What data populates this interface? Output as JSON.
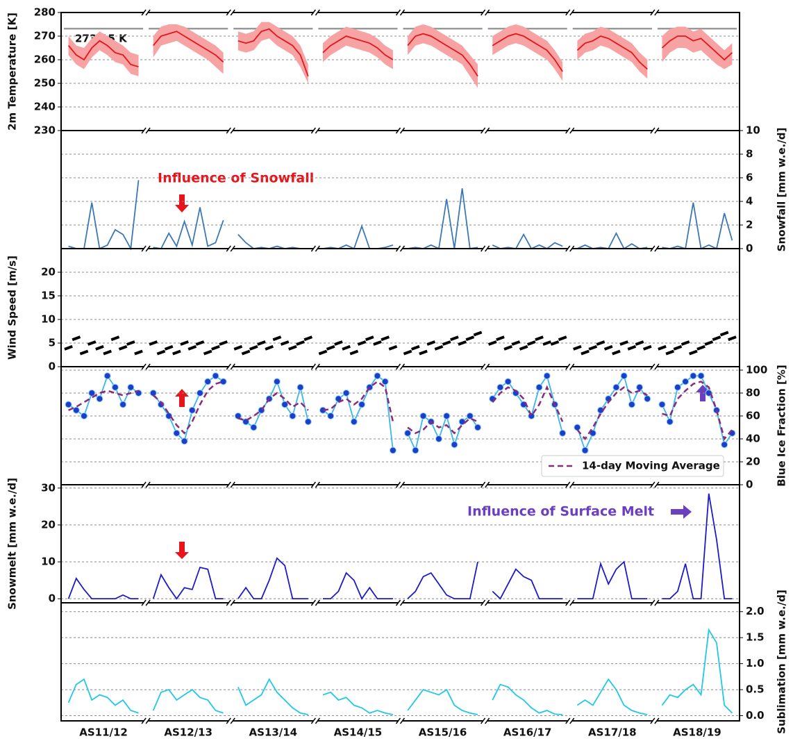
{
  "chart_data": [
    {
      "type": "line",
      "ylabel": "2m Temperature [K]",
      "axis_side": "left",
      "ylim": [
        230,
        280
      ],
      "yticks": [
        230,
        240,
        250,
        260,
        270,
        280
      ],
      "grid": true,
      "reference_line": 273.15,
      "reference_label": "273.15 K",
      "band": {
        "color": "#f7a3a3",
        "lower": [
          [
            262,
            258,
            256,
            261,
            264,
            262,
            259,
            258,
            254,
            253
          ],
          [
            261,
            266,
            267,
            268,
            266,
            264,
            262,
            260,
            257,
            254
          ],
          [
            264,
            263,
            264,
            268,
            269,
            266,
            264,
            262,
            257,
            250
          ],
          [
            259,
            262,
            264,
            266,
            265,
            264,
            263,
            261,
            258,
            256
          ],
          [
            262,
            266,
            267,
            266,
            264,
            262,
            260,
            258,
            253,
            248
          ],
          [
            262,
            264,
            266,
            267,
            266,
            264,
            262,
            260,
            256,
            251
          ],
          [
            260,
            263,
            264,
            266,
            265,
            263,
            261,
            259,
            255,
            252
          ],
          [
            259,
            263,
            265,
            265,
            263,
            264,
            261,
            258,
            256,
            258
          ]
        ],
        "upper": [
          [
            270,
            266,
            265,
            269,
            272,
            270,
            268,
            266,
            263,
            262
          ],
          [
            270,
            274,
            275,
            275,
            274,
            272,
            270,
            268,
            266,
            263
          ],
          [
            272,
            271,
            272,
            276,
            276,
            274,
            272,
            270,
            266,
            258
          ],
          [
            267,
            270,
            272,
            274,
            273,
            272,
            271,
            269,
            266,
            264
          ],
          [
            270,
            274,
            275,
            274,
            272,
            270,
            268,
            266,
            262,
            258
          ],
          [
            270,
            272,
            274,
            275,
            274,
            272,
            270,
            268,
            264,
            259
          ],
          [
            268,
            271,
            272,
            274,
            273,
            271,
            269,
            267,
            263,
            260
          ],
          [
            270,
            273,
            274,
            274,
            272,
            273,
            270,
            267,
            264,
            267
          ]
        ]
      },
      "series": [
        {
          "color": "#e3161b",
          "line": true,
          "values": [
            [
              266,
              262,
              260,
              265,
              268,
              266,
              263,
              262,
              258,
              257
            ],
            [
              266,
              270,
              271,
              272,
              270,
              268,
              266,
              264,
              262,
              259
            ],
            [
              268,
              267,
              268,
              272,
              273,
              270,
              268,
              266,
              262,
              253
            ],
            [
              263,
              266,
              268,
              270,
              269,
              268,
              267,
              265,
              262,
              260
            ],
            [
              266,
              270,
              271,
              270,
              268,
              266,
              264,
              262,
              258,
              253
            ],
            [
              266,
              268,
              270,
              271,
              270,
              268,
              266,
              264,
              260,
              255
            ],
            [
              264,
              267,
              268,
              270,
              269,
              267,
              265,
              263,
              259,
              256
            ],
            [
              265,
              268,
              270,
              270,
              268,
              269,
              266,
              263,
              260,
              263
            ]
          ]
        }
      ]
    },
    {
      "type": "line",
      "ylabel": "Snowfall [mm w.e./d]",
      "axis_side": "right",
      "ylim": [
        0,
        10
      ],
      "yticks": [
        0,
        2,
        4,
        6,
        8,
        10
      ],
      "grid": true,
      "annotation": "Influence of Snowfall",
      "series": [
        {
          "color": "#3a78b5",
          "line": true,
          "values": [
            [
              0.2,
              0,
              0,
              3.9,
              0,
              0.3,
              1.6,
              1.2,
              0,
              5.8
            ],
            [
              0.1,
              0,
              1.3,
              0.2,
              2.3,
              0.3,
              3.5,
              0.2,
              0.5,
              2.4
            ],
            [
              1.2,
              0.5,
              0,
              0.1,
              0,
              0.2,
              0,
              0.1,
              0,
              0
            ],
            [
              0,
              0.1,
              0,
              0.3,
              0,
              1.9,
              0,
              0,
              0.1,
              0.3
            ],
            [
              0,
              0.1,
              0,
              0.3,
              0,
              4.2,
              0,
              5.1,
              0,
              0.1
            ],
            [
              0.3,
              0,
              0.1,
              0,
              1.2,
              0,
              0.3,
              0,
              0.5,
              0.2
            ],
            [
              0,
              0.3,
              0,
              0.1,
              0,
              1.3,
              0,
              0.4,
              0,
              0.1
            ],
            [
              0.1,
              0,
              0.2,
              0,
              3.9,
              0,
              0.3,
              0,
              3.0,
              0.7
            ]
          ]
        }
      ]
    },
    {
      "type": "scatter",
      "ylabel": "Wind Speed [m/s]",
      "axis_side": "left",
      "ylim": [
        0,
        25
      ],
      "yticks": [
        0,
        5,
        10,
        15,
        20
      ],
      "grid": true,
      "series": [
        {
          "color": "#000000",
          "markers": true,
          "values": [
            [
              4,
              6,
              3,
              5,
              4,
              3,
              6,
              4,
              5,
              3
            ],
            [
              5,
              3,
              4,
              3,
              5,
              4,
              5,
              3,
              4,
              5
            ],
            [
              4,
              3,
              4,
              5,
              4,
              6,
              5,
              4,
              5,
              6
            ],
            [
              3,
              4,
              5,
              4,
              3,
              5,
              6,
              5,
              6,
              4
            ],
            [
              3,
              4,
              3,
              5,
              4,
              5,
              6,
              5,
              6,
              7
            ],
            [
              5,
              6,
              4,
              5,
              4,
              5,
              6,
              5,
              5,
              6
            ],
            [
              4,
              3,
              4,
              5,
              4,
              3,
              5,
              4,
              5,
              4
            ],
            [
              4,
              3,
              4,
              5,
              3,
              4,
              5,
              6,
              7,
              6
            ]
          ]
        }
      ]
    },
    {
      "type": "line",
      "ylabel": "Blue Ice Fraction [%]",
      "axis_side": "right",
      "ylim": [
        0,
        103
      ],
      "yticks": [
        0,
        20,
        40,
        60,
        80,
        100
      ],
      "grid": true,
      "legend": "lower right",
      "series": [
        {
          "color": "#38b6f0",
          "marker_color": "#1b3fc9",
          "line": true,
          "markers": true,
          "values": [
            [
              70,
              65,
              60,
              80,
              75,
              95,
              85,
              70,
              85,
              80
            ],
            [
              80,
              70,
              60,
              45,
              38,
              65,
              80,
              90,
              95,
              90
            ],
            [
              60,
              55,
              50,
              65,
              75,
              90,
              70,
              60,
              85,
              55
            ],
            [
              65,
              60,
              75,
              80,
              55,
              70,
              85,
              95,
              90,
              30
            ],
            [
              45,
              30,
              60,
              55,
              40,
              60,
              35,
              55,
              60,
              50
            ],
            [
              75,
              85,
              90,
              80,
              70,
              60,
              85,
              95,
              70,
              45
            ],
            [
              50,
              30,
              45,
              65,
              75,
              85,
              95,
              70,
              85,
              75
            ],
            [
              70,
              55,
              85,
              90,
              95,
              95,
              80,
              65,
              35,
              45
            ]
          ]
        },
        {
          "name": "14-day Moving Average",
          "color": "#8b2a7a",
          "line": true,
          "dashed": true,
          "values": [
            [
              65,
              68,
              72,
              76,
              80,
              82,
              80,
              78,
              80,
              82
            ],
            [
              78,
              72,
              62,
              52,
              45,
              55,
              70,
              82,
              88,
              90
            ],
            [
              58,
              56,
              60,
              65,
              75,
              80,
              75,
              68,
              72,
              65
            ],
            [
              65,
              66,
              72,
              75,
              70,
              75,
              85,
              90,
              85,
              55
            ],
            [
              50,
              45,
              48,
              55,
              50,
              52,
              45,
              52,
              58,
              55
            ],
            [
              72,
              80,
              85,
              82,
              75,
              60,
              70,
              85,
              70,
              55
            ],
            [
              48,
              40,
              50,
              62,
              72,
              80,
              85,
              80,
              82,
              78
            ],
            [
              62,
              60,
              75,
              82,
              88,
              90,
              85,
              65,
              40,
              48
            ]
          ]
        }
      ]
    },
    {
      "type": "line",
      "ylabel": "Snowmelt [mm w.e./d]",
      "axis_side": "left",
      "ylim": [
        -1.1,
        30.9
      ],
      "yticks": [
        0,
        10,
        20,
        30
      ],
      "grid": true,
      "annotation": "Influence of Surface Melt",
      "series": [
        {
          "color": "#1a1ac8",
          "line": true,
          "values": [
            [
              0,
              5.5,
              2.5,
              0,
              0,
              0,
              0,
              1,
              0,
              0
            ],
            [
              0,
              6.5,
              3,
              0,
              3,
              2.5,
              8.5,
              8,
              0,
              0
            ],
            [
              0,
              3,
              0,
              0,
              5,
              11,
              9,
              0,
              0,
              0
            ],
            [
              0,
              0,
              2,
              7,
              5,
              0,
              3,
              0,
              0,
              0
            ],
            [
              0,
              2,
              6,
              7,
              4,
              1,
              0,
              0,
              0,
              10
            ],
            [
              2,
              0,
              4,
              8,
              6,
              5,
              0,
              0,
              0,
              0
            ],
            [
              0,
              0,
              0,
              9.5,
              4,
              8,
              10,
              0,
              0,
              0
            ],
            [
              0,
              0,
              2,
              9.5,
              0,
              0,
              28.5,
              16,
              0,
              0
            ]
          ]
        }
      ]
    },
    {
      "type": "line",
      "ylabel": "Sublimation [mm w.e./d]",
      "axis_side": "right",
      "ylim": [
        -0.1,
        2.17
      ],
      "yticks": [
        {
          "value": 0,
          "label": "0.0"
        },
        0.5,
        {
          "value": 1,
          "label": "1.0"
        },
        1.5,
        {
          "value": 2,
          "label": "2.0"
        }
      ],
      "grid": true,
      "categories": [
        "AS11/12",
        "AS12/13",
        "AS13/14",
        "AS14/15",
        "AS15/16",
        "AS16/17",
        "AS17/18",
        "AS18/19"
      ],
      "series": [
        {
          "color": "#1ec8e6",
          "line": true,
          "values": [
            [
              0.25,
              0.6,
              0.7,
              0.3,
              0.4,
              0.35,
              0.2,
              0.3,
              0.1,
              0.05
            ],
            [
              0.1,
              0.45,
              0.5,
              0.3,
              0.4,
              0.5,
              0.35,
              0.3,
              0.1,
              0.05
            ],
            [
              0.55,
              0.2,
              0.3,
              0.4,
              0.7,
              0.45,
              0.3,
              0.15,
              0.05,
              0.02
            ],
            [
              0.4,
              0.45,
              0.3,
              0.35,
              0.2,
              0.15,
              0.05,
              0.1,
              0.05,
              0.02
            ],
            [
              0.1,
              0.3,
              0.5,
              0.45,
              0.4,
              0.5,
              0.2,
              0.1,
              0.05,
              0.02
            ],
            [
              0.3,
              0.6,
              0.55,
              0.4,
              0.3,
              0.15,
              0.05,
              0.1,
              0.03,
              0.02
            ],
            [
              0.2,
              0.3,
              0.2,
              0.45,
              0.7,
              0.5,
              0.2,
              0.1,
              0.05,
              0.02
            ],
            [
              0.2,
              0.4,
              0.35,
              0.5,
              0.6,
              0.4,
              1.65,
              1.4,
              0.2,
              0.05
            ]
          ]
        }
      ]
    }
  ]
}
